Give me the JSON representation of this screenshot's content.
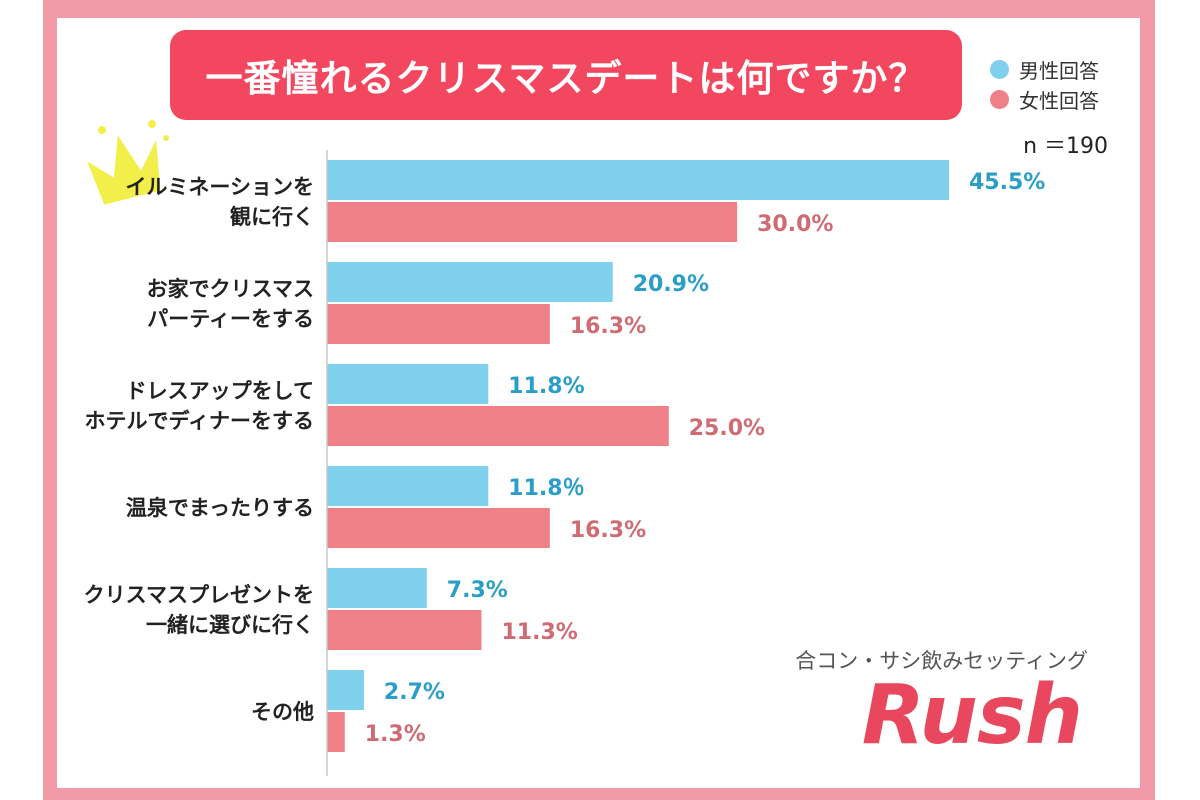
{
  "title": "一番憧れるクリスマスデートは何ですか？",
  "sample_size": "n ＝190",
  "sponsor_text": "合コン・サシ飲みセッティング",
  "logo_text": "Rush",
  "colors": {
    "frame": "#f29aa8",
    "title_bg": "#f2475f",
    "male_bar": "#7fd0ec",
    "female_bar": "#ef8087",
    "male_text": "#2b9ec7",
    "female_text": "#cf6b73",
    "crown": "#f3ef4a"
  },
  "chart_data": {
    "type": "bar",
    "orientation": "horizontal",
    "categories": [
      "イルミネーションを\n観に行く",
      "お家でクリスマス\nパーティーをする",
      "ドレスアップをして\nホテルでディナーをする",
      "温泉でまったりする",
      "クリスマスプレゼントを\n一緒に選びに行く",
      "その他"
    ],
    "series": [
      {
        "name": "男性回答",
        "values": [
          45.5,
          20.9,
          11.8,
          11.8,
          7.3,
          2.7
        ],
        "labels": [
          "45.5%",
          "20.9%",
          "11.8%",
          "11.8％",
          "7.3%",
          "2.7%"
        ]
      },
      {
        "name": "女性回答",
        "values": [
          30.0,
          16.3,
          25.0,
          16.3,
          11.3,
          1.3
        ],
        "labels": [
          "30.0%",
          "16.3%",
          "25.0%",
          "16.3%",
          "11.3%",
          "1.3%"
        ]
      }
    ],
    "xlim": [
      0,
      45.5
    ],
    "grid": false,
    "legend_position": "top-right",
    "highlight_first_category": "crown-icon"
  }
}
